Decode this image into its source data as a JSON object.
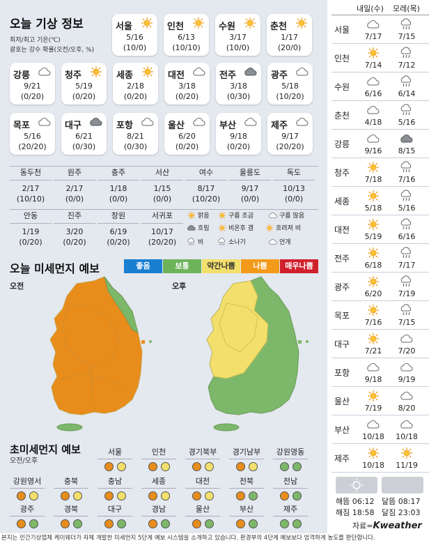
{
  "title": "오늘 기상 정보",
  "subtitle1": "최저/최고 기온(℃)",
  "subtitle2": "괄호는 강수 확률(오전/오후, %)",
  "cards": [
    {
      "name": "서울",
      "icon": "sun",
      "temp": "5/16",
      "prob": "(10/0)"
    },
    {
      "name": "인천",
      "icon": "sun",
      "temp": "6/13",
      "prob": "(10/10)"
    },
    {
      "name": "수원",
      "icon": "sun",
      "temp": "3/17",
      "prob": "(10/0)"
    },
    {
      "name": "춘천",
      "icon": "sun",
      "temp": "1/17",
      "prob": "(20/0)"
    },
    {
      "name": "강릉",
      "icon": "cloud",
      "temp": "9/21",
      "prob": "(0/20)"
    },
    {
      "name": "청주",
      "icon": "sun",
      "temp": "5/19",
      "prob": "(0/20)"
    },
    {
      "name": "세종",
      "icon": "sun",
      "temp": "2/18",
      "prob": "(0/20)"
    },
    {
      "name": "대전",
      "icon": "cloud",
      "temp": "3/18",
      "prob": "(0/20)"
    },
    {
      "name": "전주",
      "icon": "cloud-dark",
      "temp": "3/18",
      "prob": "(0/30)"
    },
    {
      "name": "광주",
      "icon": "cloud",
      "temp": "5/18",
      "prob": "(10/20)"
    },
    {
      "name": "목포",
      "icon": "cloud",
      "temp": "5/16",
      "prob": "(20/20)"
    },
    {
      "name": "대구",
      "icon": "cloud-dark",
      "temp": "6/21",
      "prob": "(0/30)"
    },
    {
      "name": "포항",
      "icon": "cloud",
      "temp": "8/21",
      "prob": "(0/30)"
    },
    {
      "name": "울산",
      "icon": "cloud",
      "temp": "6/20",
      "prob": "(0/20)"
    },
    {
      "name": "부산",
      "icon": "cloud",
      "temp": "9/18",
      "prob": "(0/20)"
    },
    {
      "name": "제주",
      "icon": "cloud",
      "temp": "9/17",
      "prob": "(20/20)"
    }
  ],
  "small_row1": [
    {
      "name": "동두천",
      "temp": "2/17",
      "prob": "(10/10)"
    },
    {
      "name": "원주",
      "temp": "2/17",
      "prob": "(0/0)"
    },
    {
      "name": "충주",
      "temp": "1/18",
      "prob": "(0/0)"
    },
    {
      "name": "서산",
      "temp": "1/15",
      "prob": "(0/0)"
    },
    {
      "name": "여수",
      "temp": "8/17",
      "prob": "(10/20)"
    },
    {
      "name": "울릉도",
      "temp": "9/17",
      "prob": "(0/0)"
    },
    {
      "name": "독도",
      "temp": "10/13",
      "prob": "(0/0)"
    }
  ],
  "small_row2": [
    {
      "name": "안동",
      "temp": "1/19",
      "prob": "(0/20)"
    },
    {
      "name": "진주",
      "temp": "3/20",
      "prob": "(0/20)"
    },
    {
      "name": "창원",
      "temp": "6/19",
      "prob": "(0/20)"
    },
    {
      "name": "서귀포",
      "temp": "10/17",
      "prob": "(20/20)"
    }
  ],
  "legend": [
    "맑음",
    "구름 조금",
    "구름 많음",
    "흐림",
    "비온후 갬",
    "흐려져 비",
    "비",
    "소나기",
    "안개"
  ],
  "dust_title": "오늘 미세먼지 예보",
  "dust_levels": [
    {
      "label": "좋음",
      "color": "#1a7fd0"
    },
    {
      "label": "보통",
      "color": "#6db35a"
    },
    {
      "label": "약간나쁨",
      "color": "#f3e06c",
      "text": "#333"
    },
    {
      "label": "나쁨",
      "color": "#f39a1a"
    },
    {
      "label": "매우나쁨",
      "color": "#d0202c"
    }
  ],
  "map_am": "오전",
  "map_pm": "오후",
  "ultra_title": "초미세먼지 예보",
  "ultra_sub": "오전/오후",
  "ultra_rows": [
    [
      {
        "name": "서울",
        "am": "bad",
        "pm": "mild"
      },
      {
        "name": "인천",
        "am": "bad",
        "pm": "mild"
      },
      {
        "name": "경기북부",
        "am": "bad",
        "pm": "mild"
      },
      {
        "name": "경기남부",
        "am": "bad",
        "pm": "mild"
      },
      {
        "name": "강원영동",
        "am": "good",
        "pm": "good"
      }
    ],
    [
      {
        "name": "강원영서",
        "am": "bad",
        "pm": "mild"
      },
      {
        "name": "충북",
        "am": "bad",
        "pm": "mild"
      },
      {
        "name": "충남",
        "am": "bad",
        "pm": "mild"
      },
      {
        "name": "세종",
        "am": "bad",
        "pm": "mild"
      },
      {
        "name": "대전",
        "am": "bad",
        "pm": "mild"
      },
      {
        "name": "전북",
        "am": "bad",
        "pm": "good"
      },
      {
        "name": "전남",
        "am": "bad",
        "pm": "good"
      }
    ],
    [
      {
        "name": "광주",
        "am": "bad",
        "pm": "good"
      },
      {
        "name": "경북",
        "am": "bad",
        "pm": "good"
      },
      {
        "name": "대구",
        "am": "bad",
        "pm": "good"
      },
      {
        "name": "경남",
        "am": "bad",
        "pm": "good"
      },
      {
        "name": "울산",
        "am": "bad",
        "pm": "good"
      },
      {
        "name": "부산",
        "am": "bad",
        "pm": "good"
      },
      {
        "name": "제주",
        "am": "good",
        "pm": "good"
      }
    ]
  ],
  "right_head": {
    "col1": "내일(수)",
    "col2": "모레(목)"
  },
  "right_rows": [
    {
      "city": "서울",
      "t1": "7/17",
      "i1": "cloud",
      "t2": "7/15",
      "i2": "rain"
    },
    {
      "city": "인천",
      "t1": "7/14",
      "i1": "sun",
      "t2": "7/12",
      "i2": "rain"
    },
    {
      "city": "수원",
      "t1": "6/16",
      "i1": "cloud",
      "t2": "6/14",
      "i2": "rain"
    },
    {
      "city": "춘천",
      "t1": "4/18",
      "i1": "cloud",
      "t2": "5/16",
      "i2": "rain"
    },
    {
      "city": "강릉",
      "t1": "9/16",
      "i1": "cloud",
      "t2": "8/15",
      "i2": "cloud-dark"
    },
    {
      "city": "청주",
      "t1": "7/18",
      "i1": "sun",
      "t2": "7/16",
      "i2": "rain"
    },
    {
      "city": "세종",
      "t1": "5/18",
      "i1": "sun",
      "t2": "5/16",
      "i2": "rain"
    },
    {
      "city": "대전",
      "t1": "5/19",
      "i1": "sun",
      "t2": "6/16",
      "i2": "rain"
    },
    {
      "city": "전주",
      "t1": "6/18",
      "i1": "sun",
      "t2": "7/17",
      "i2": "rain"
    },
    {
      "city": "광주",
      "t1": "6/20",
      "i1": "sun",
      "t2": "7/19",
      "i2": "rain"
    },
    {
      "city": "목포",
      "t1": "7/16",
      "i1": "sun",
      "t2": "7/15",
      "i2": "rain"
    },
    {
      "city": "대구",
      "t1": "7/21",
      "i1": "sun",
      "t2": "7/20",
      "i2": "cloud"
    },
    {
      "city": "포항",
      "t1": "9/18",
      "i1": "cloud",
      "t2": "9/19",
      "i2": "cloud"
    },
    {
      "city": "울산",
      "t1": "7/19",
      "i1": "sun",
      "t2": "8/20",
      "i2": "cloud"
    },
    {
      "city": "부산",
      "t1": "10/18",
      "i1": "cloud",
      "t2": "10/18",
      "i2": "cloud"
    },
    {
      "city": "제주",
      "t1": "10/18",
      "i1": "sun",
      "t2": "11/19",
      "i2": "sun"
    }
  ],
  "sun": {
    "rise_label": "해뜸",
    "rise": "06:12",
    "set_label": "해짐",
    "set": "18:58"
  },
  "moon": {
    "rise_label": "달뜸",
    "rise": "08:17",
    "set_label": "달짐",
    "set": "23:03"
  },
  "credit": {
    "label": "자료=",
    "brand": "Kweather"
  },
  "footer": "본지는 민간기상업체 케이웨더가 자체 개발한 미세먼지 5단계 예보 시스템을 소개하고 있습니다. 환경부의 4단계 예보보다 엄격하게 농도를 판단합니다."
}
